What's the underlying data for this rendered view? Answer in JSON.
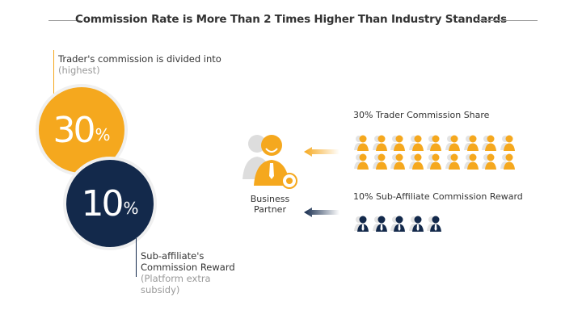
{
  "title": "Commission Rate is More Than 2 Times Higher Than Industry Standards",
  "colors": {
    "orange": "#F5A81E",
    "navy": "#13294B",
    "gray": "#999999"
  },
  "trader_circle": {
    "value": "30",
    "unit": "%",
    "caption": "Trader's commission is divided into",
    "note": "(highest)"
  },
  "sub_circle": {
    "value": "10",
    "unit": "%",
    "caption_line1": "Sub-affiliate's",
    "caption_line2": "Commission Reward",
    "note_line1": "(Platform extra",
    "note_line2": "subsidy)"
  },
  "partner": {
    "label_line1": "Business",
    "label_line2": "Partner",
    "icon": "business-partner-icon"
  },
  "trader_group": {
    "label": "30% Trader Commission Share",
    "count": 18,
    "icon": "person-icon"
  },
  "sub_group": {
    "label": "10% Sub-Affiliate Commission Reward",
    "count": 5,
    "icon": "person-tie-icon"
  }
}
